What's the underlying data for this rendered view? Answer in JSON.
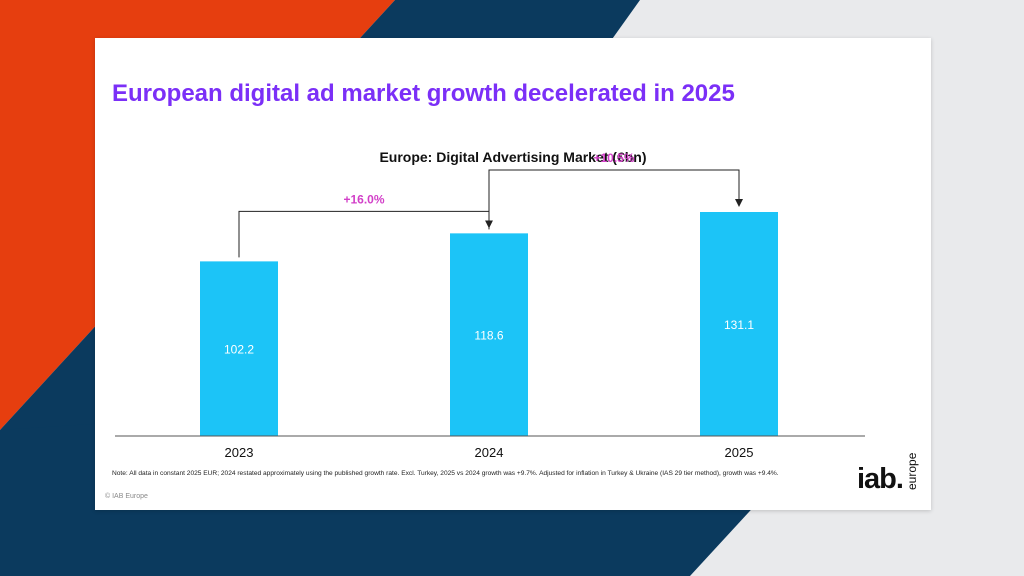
{
  "slide": {
    "title": "European digital ad market growth decelerated in 2025",
    "note": "Note: All data in constant 2025 EUR; 2024 restated approximately using the published growth rate. Excl. Turkey, 2025 vs 2024 growth was +9.7%. Adjusted for inflation in Turkey & Ukraine (IAS 29 tier method), growth was +9.4%.",
    "copyright": "© IAB Europe",
    "logo_main": "iab.",
    "logo_sub": "europe"
  },
  "colors": {
    "title": "#7b2ff7",
    "bar": "#1cc4f7",
    "growth_label": "#d23fc8",
    "bg_orange": "#e63e0f",
    "bg_navy": "#0b3a5e"
  },
  "chart_data": {
    "type": "bar",
    "title": "Europe: Digital Advertising Market (€bn)",
    "categories": [
      "2023",
      "2024",
      "2025"
    ],
    "values": [
      102.2,
      118.6,
      131.1
    ],
    "ylim": [
      0,
      150
    ],
    "grid": false,
    "legend": "none",
    "annotations": [
      {
        "from": "2023",
        "to": "2024",
        "label": "+16.0%"
      },
      {
        "from": "2024",
        "to": "2025",
        "label": "+10.5%"
      }
    ]
  }
}
